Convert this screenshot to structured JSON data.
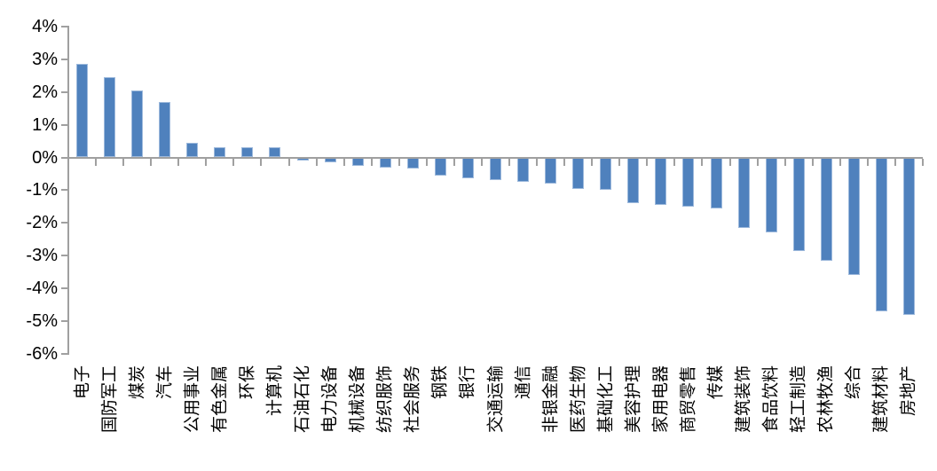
{
  "chart_data": {
    "type": "bar",
    "title": "",
    "xlabel": "",
    "ylabel": "",
    "categories": [
      "电子",
      "国防军工",
      "煤炭",
      "汽车",
      "公用事业",
      "有色金属",
      "环保",
      "计算机",
      "石油石化",
      "电力设备",
      "机械设备",
      "纺织服饰",
      "社会服务",
      "钢铁",
      "银行",
      "交通运输",
      "通信",
      "非银金融",
      "医药生物",
      "基础化工",
      "美容护理",
      "家用电器",
      "商贸零售",
      "传媒",
      "建筑装饰",
      "食品饮料",
      "轻工制造",
      "农林牧渔",
      "综合",
      "建筑材料",
      "房地产"
    ],
    "values": [
      2.85,
      2.45,
      2.05,
      1.7,
      0.45,
      0.3,
      0.3,
      0.3,
      -0.1,
      -0.15,
      -0.25,
      -0.3,
      -0.35,
      -0.55,
      -0.65,
      -0.7,
      -0.75,
      -0.8,
      -0.95,
      -1.0,
      -1.4,
      -1.45,
      -1.5,
      -1.55,
      -2.15,
      -2.3,
      -2.85,
      -3.15,
      -3.6,
      -4.7,
      -4.8
    ],
    "value_unit": "%",
    "ylim": [
      -6,
      4
    ],
    "y_tick_step": 1,
    "y_tick_labels": [
      "4%",
      "3%",
      "2%",
      "1%",
      "0%",
      "-1%",
      "-2%",
      "-3%",
      "-4%",
      "-5%",
      "-6%"
    ],
    "grid": false,
    "legend": null,
    "bar_color": "#4f81bd",
    "axis_color": "#a0a0a0",
    "text_color": "#000000",
    "background_color": "#ffffff"
  }
}
